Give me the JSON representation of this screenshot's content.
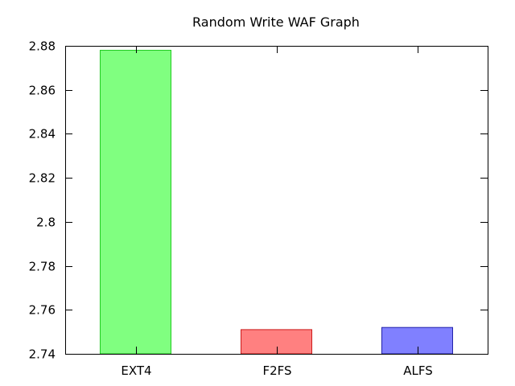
{
  "chart_data": {
    "type": "bar",
    "title": "Random Write WAF Graph",
    "xlabel": "",
    "ylabel": "",
    "categories": [
      "EXT4",
      "F2FS",
      "ALFS"
    ],
    "values": [
      2.878,
      2.751,
      2.752
    ],
    "colors": [
      "#80ff80",
      "#ff8080",
      "#8080ff"
    ],
    "border_colors": [
      "#22cc22",
      "#cc1a1a",
      "#2222aa"
    ],
    "ylim": [
      2.74,
      2.88
    ],
    "yticks": [
      2.74,
      2.76,
      2.78,
      2.8,
      2.82,
      2.84,
      2.86,
      2.88
    ],
    "ytick_labels": [
      "2.74",
      "2.76",
      "2.78",
      "2.8",
      "2.82",
      "2.84",
      "2.86",
      "2.88"
    ],
    "grid": false,
    "legend": "none"
  }
}
